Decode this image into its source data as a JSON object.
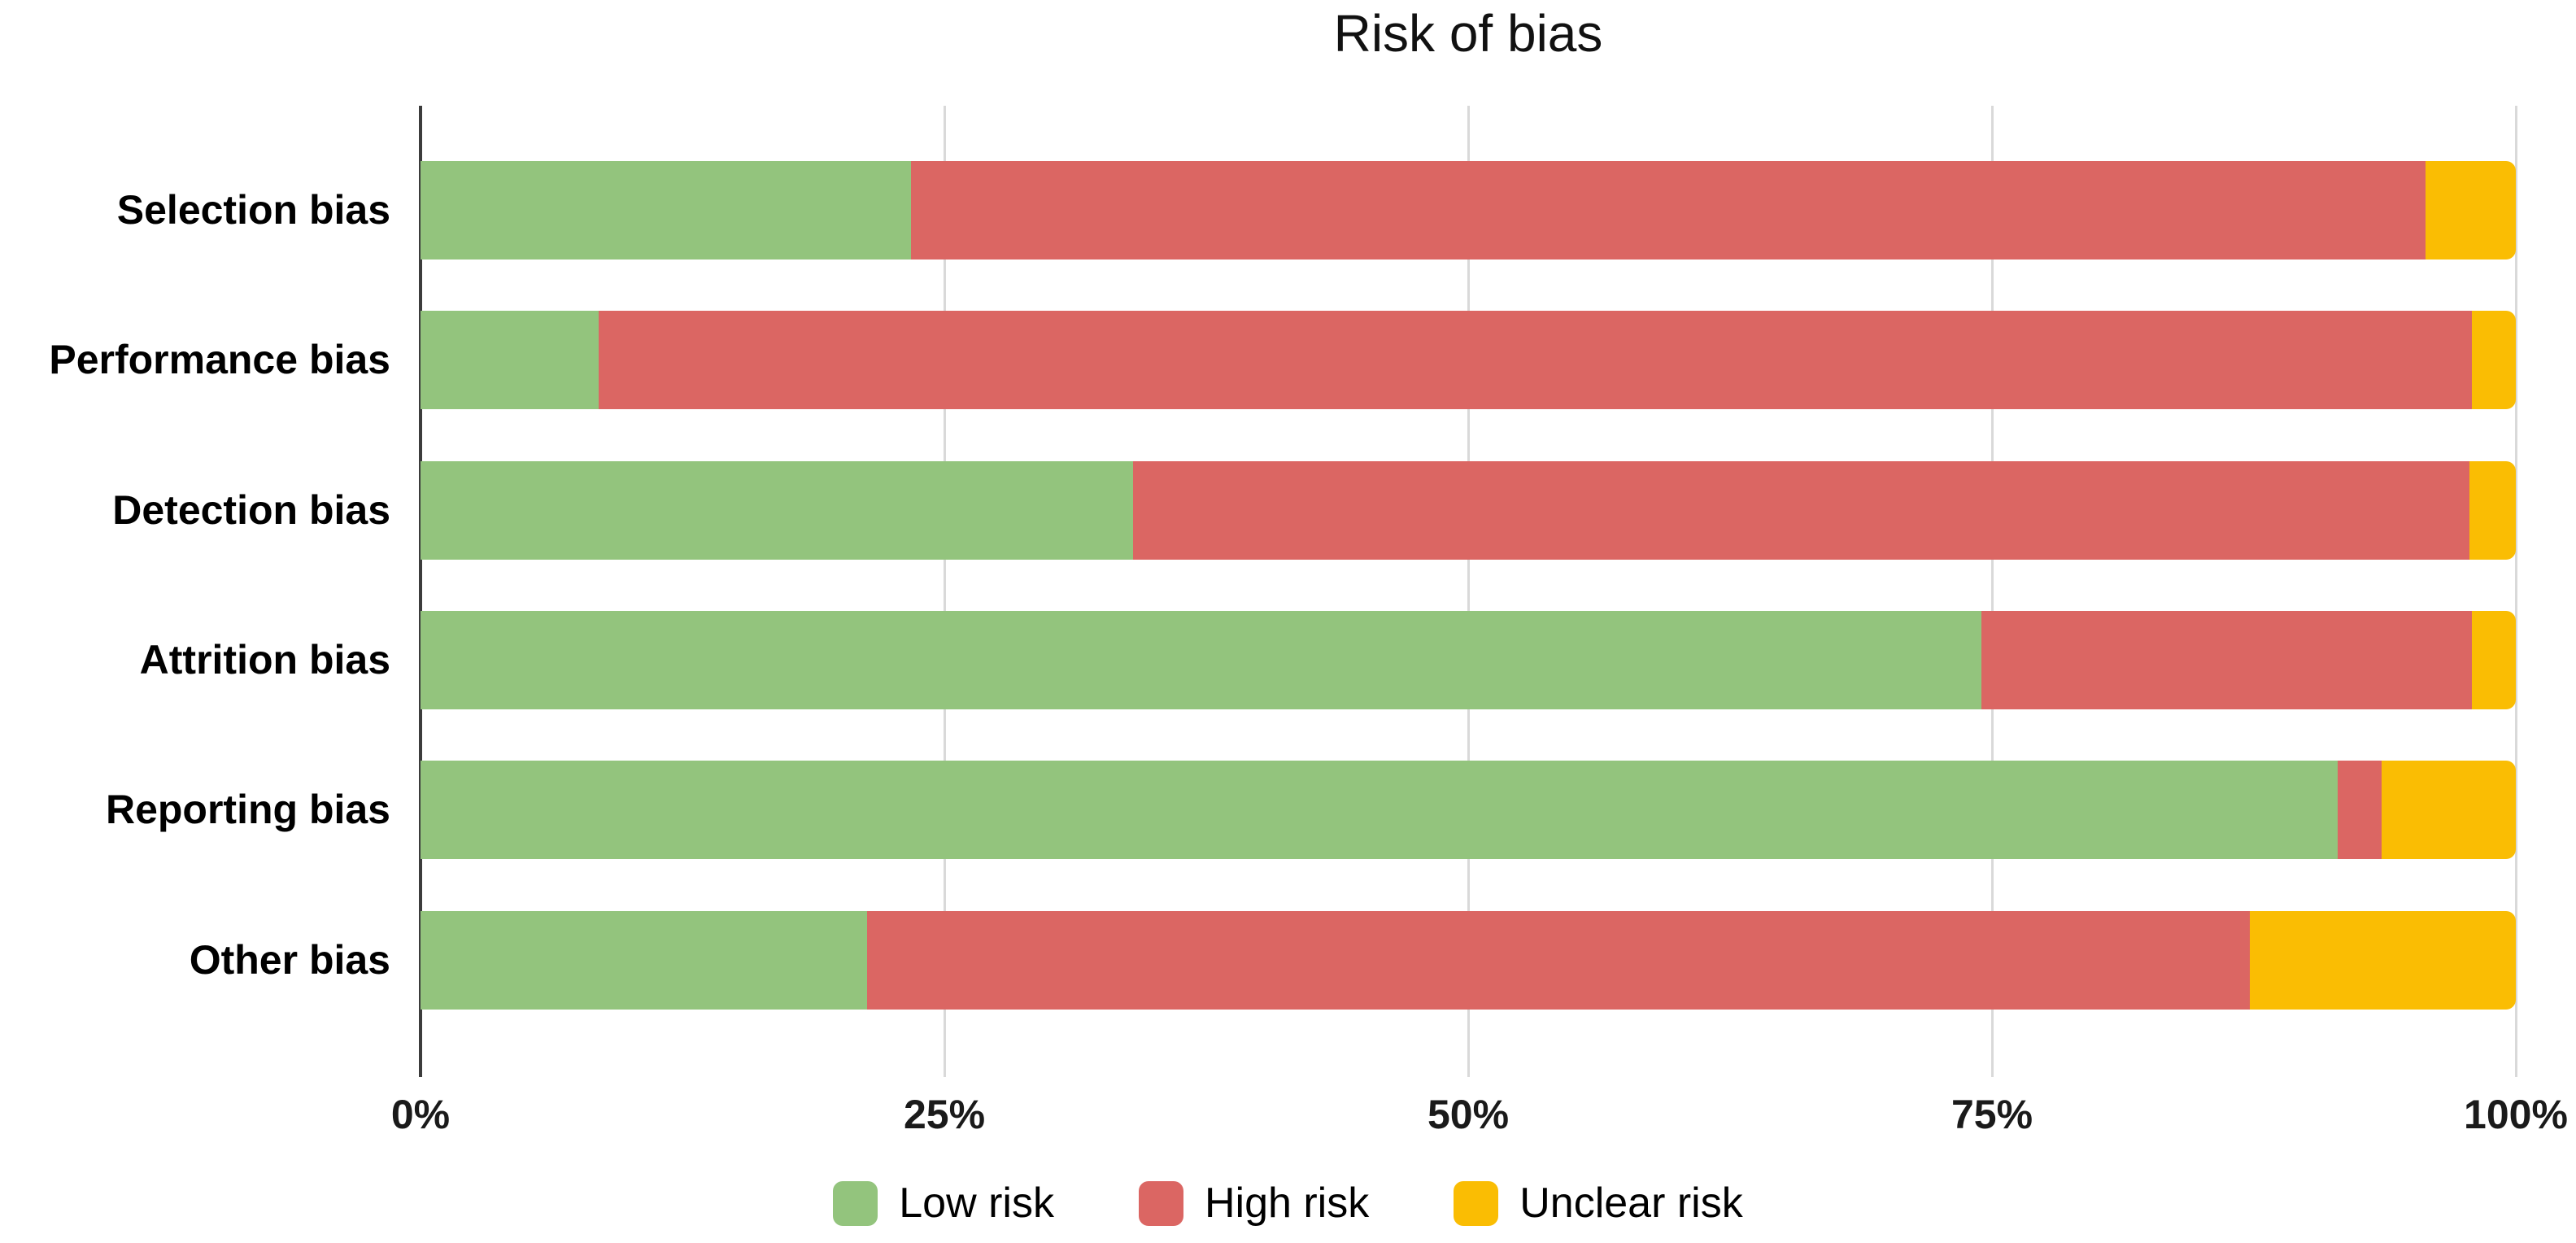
{
  "chart_data": {
    "type": "bar",
    "stacked": true,
    "orientation": "horizontal",
    "title": "Risk of bias",
    "categories": [
      "Selection bias",
      "Performance bias",
      "Detection bias",
      "Attrition bias",
      "Reporting bias",
      "Other bias"
    ],
    "series": [
      {
        "name": "Low risk",
        "color": "#93c47d",
        "values": [
          23.4,
          8.5,
          34.0,
          74.5,
          91.5,
          21.3
        ]
      },
      {
        "name": "High risk",
        "color": "#db6663",
        "values": [
          72.3,
          89.4,
          63.8,
          23.4,
          2.1,
          66.0
        ]
      },
      {
        "name": "Unclear risk",
        "color": "#fabd03",
        "values": [
          4.3,
          2.1,
          2.2,
          2.1,
          6.4,
          12.7
        ]
      }
    ],
    "xlabel": "",
    "ylabel": "",
    "x_ticks": [
      "0%",
      "25%",
      "50%",
      "75%",
      "100%"
    ],
    "x_tick_values": [
      0,
      25,
      50,
      75,
      100
    ],
    "xlim": [
      0,
      100
    ],
    "grid": "vertical",
    "legend_position": "bottom",
    "colors": {
      "gridline": "#d9d9d9",
      "axis": "#3c3c3c",
      "low_risk": "#93c47d",
      "high_risk": "#db6663",
      "unclear_risk": "#fabd03"
    }
  }
}
